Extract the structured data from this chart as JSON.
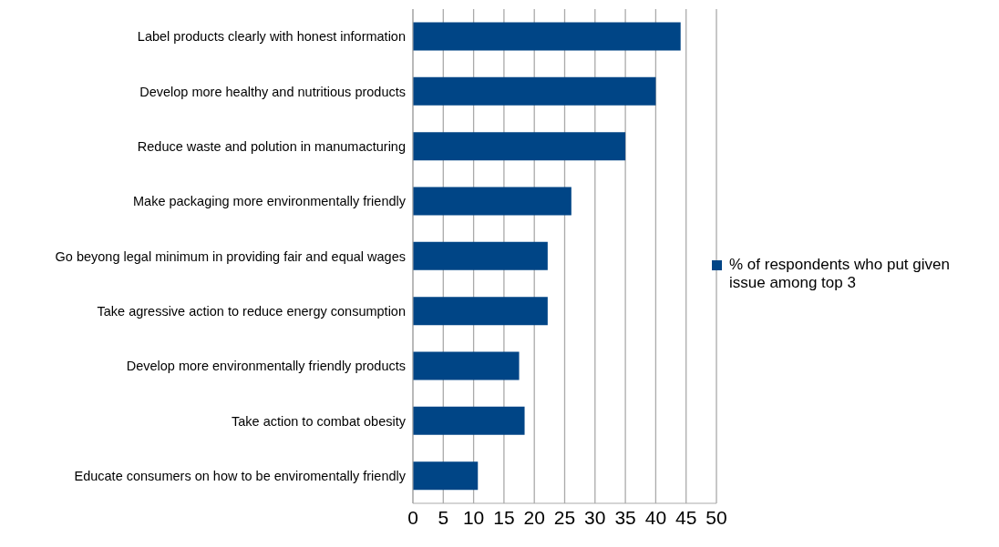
{
  "chart_data": {
    "type": "bar",
    "orientation": "horizontal",
    "categories": [
      "Label products clearly with honest information",
      "Develop more healthy and nutritious products",
      "Reduce waste and polution in manumacturing",
      "Make packaging more environmentally friendly",
      "Go beyong legal minimum in providing fair and equal wages",
      "Take agressive action to reduce energy consumption",
      "Develop more environmentally friendly products",
      "Take action to combat obesity",
      "Educate consumers on how to be enviromentally friendly"
    ],
    "series": [
      {
        "name": "% of respondents who put given issue among top 3",
        "color": "#004586",
        "values": [
          44.1,
          40.0,
          35.0,
          26.1,
          22.2,
          22.2,
          17.5,
          18.4,
          10.7
        ]
      }
    ],
    "xlim": [
      0,
      50
    ],
    "xticks": [
      0,
      5,
      10,
      15,
      20,
      25,
      30,
      35,
      40,
      45,
      50
    ],
    "grid": "x",
    "legend": "right"
  }
}
